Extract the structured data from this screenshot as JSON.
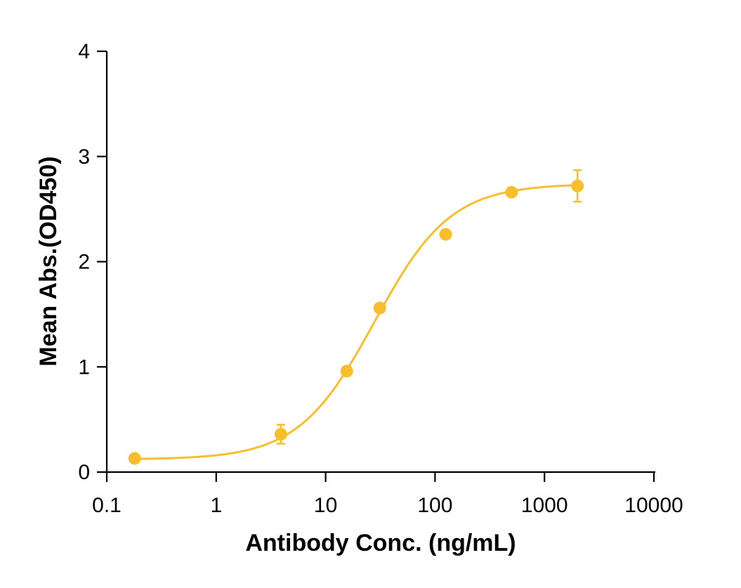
{
  "chart_data": {
    "type": "scatter",
    "title": "",
    "xlabel": "Antibody Conc. (ng/mL)",
    "ylabel": "Mean Abs.(OD450)",
    "x_scale": "log",
    "xlim": [
      0.1,
      10000
    ],
    "ylim": [
      0,
      4
    ],
    "x_ticks": [
      0.1,
      1,
      10,
      100,
      1000,
      10000
    ],
    "x_tick_labels": [
      "0.1",
      "1",
      "10",
      "100",
      "1000",
      "10000"
    ],
    "y_ticks": [
      0,
      1,
      2,
      3,
      4
    ],
    "y_tick_labels": [
      "0",
      "1",
      "2",
      "3",
      "4"
    ],
    "grid": false,
    "legend": "none",
    "color": "#F9BE2B",
    "series": [
      {
        "x": [
          0.18,
          3.9,
          15.6,
          31.25,
          125,
          500,
          2000
        ],
        "y": [
          0.13,
          0.36,
          0.96,
          1.56,
          2.26,
          2.66,
          2.72
        ],
        "error": [
          0.02,
          0.09,
          0.03,
          0.03,
          0.03,
          0.03,
          0.15
        ],
        "fit": {
          "model": "4PL",
          "bottom": 0.12,
          "top": 2.74,
          "ec50": 28,
          "hill": 1.25
        }
      }
    ]
  }
}
